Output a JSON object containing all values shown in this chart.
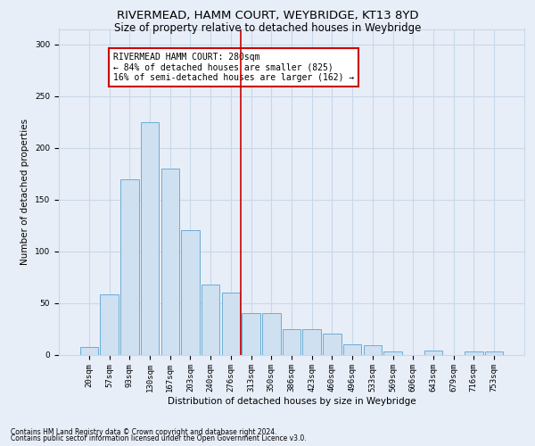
{
  "title": "RIVERMEAD, HAMM COURT, WEYBRIDGE, KT13 8YD",
  "subtitle": "Size of property relative to detached houses in Weybridge",
  "xlabel": "Distribution of detached houses by size in Weybridge",
  "ylabel": "Number of detached properties",
  "categories": [
    "20sqm",
    "57sqm",
    "93sqm",
    "130sqm",
    "167sqm",
    "203sqm",
    "240sqm",
    "276sqm",
    "313sqm",
    "350sqm",
    "386sqm",
    "423sqm",
    "460sqm",
    "496sqm",
    "533sqm",
    "569sqm",
    "606sqm",
    "643sqm",
    "679sqm",
    "716sqm",
    "753sqm"
  ],
  "values": [
    7,
    58,
    170,
    225,
    180,
    120,
    68,
    60,
    40,
    40,
    25,
    25,
    20,
    10,
    9,
    3,
    0,
    4,
    0,
    3,
    3
  ],
  "bar_color": "#cfe0f0",
  "bar_edge_color": "#6aaed6",
  "grid_color": "#c8d8e8",
  "background_color": "#e8eef8",
  "vline_x": 7.5,
  "vline_color": "#cc0000",
  "annotation_text": "RIVERMEAD HAMM COURT: 280sqm\n← 84% of detached houses are smaller (825)\n16% of semi-detached houses are larger (162) →",
  "annotation_box_facecolor": "#ffffff",
  "annotation_box_edgecolor": "#cc0000",
  "ylim": [
    0,
    315
  ],
  "yticks": [
    0,
    50,
    100,
    150,
    200,
    250,
    300
  ],
  "footer1": "Contains HM Land Registry data © Crown copyright and database right 2024.",
  "footer2": "Contains public sector information licensed under the Open Government Licence v3.0.",
  "title_fontsize": 9.5,
  "subtitle_fontsize": 8.5,
  "xlabel_fontsize": 7.5,
  "ylabel_fontsize": 7.5,
  "tick_fontsize": 6.5,
  "ann_fontsize": 7.0,
  "footer_fontsize": 5.5
}
